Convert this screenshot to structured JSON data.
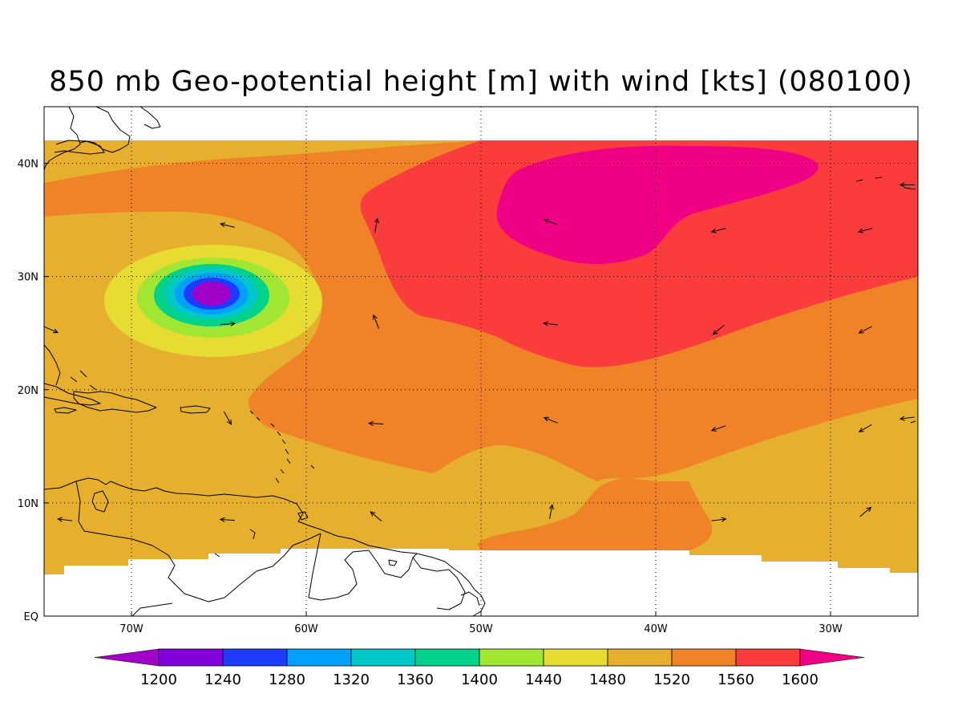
{
  "title": "850 mb Geo-potential height [m] with wind [kts] (080100)",
  "map": {
    "lon_range": [
      -75,
      -25
    ],
    "lat_range": [
      0,
      45
    ],
    "data_lat_range": [
      5,
      42
    ],
    "lon_ticks": [
      {
        "value": -70,
        "label": "70W"
      },
      {
        "value": -60,
        "label": "60W"
      },
      {
        "value": -50,
        "label": "50W"
      },
      {
        "value": -40,
        "label": "40W"
      },
      {
        "value": -30,
        "label": "30W"
      }
    ],
    "lat_ticks": [
      {
        "value": 0,
        "label": "EQ"
      },
      {
        "value": 10,
        "label": "10N"
      },
      {
        "value": 20,
        "label": "20N"
      },
      {
        "value": 30,
        "label": "30N"
      },
      {
        "value": 40,
        "label": "40N"
      }
    ],
    "low_center": {
      "lon": -65.3,
      "lat": 28.5
    },
    "high_center": {
      "lon": -41,
      "lat": 36
    }
  },
  "colorbar": {
    "levels": [
      "1200",
      "1240",
      "1280",
      "1320",
      "1360",
      "1400",
      "1440",
      "1480",
      "1520",
      "1560",
      "1600"
    ],
    "colors": [
      "#a000c8",
      "#8200dc",
      "#1e3cff",
      "#00a0ff",
      "#00c8c8",
      "#00d28c",
      "#a0e632",
      "#e6dc32",
      "#e6af2d",
      "#f08228",
      "#fa3c3c",
      "#f00082"
    ],
    "underflow_color": "#a000c8",
    "overflow_color": "#f00082"
  },
  "wind_vectors": [
    {
      "lon": -64.5,
      "lat": 34.5,
      "u": -0.8,
      "v": 0.2
    },
    {
      "lon": -64.5,
      "lat": 25.8,
      "u": 0.8,
      "v": 0.05
    },
    {
      "lon": -56,
      "lat": 34.5,
      "u": 0.15,
      "v": 0.8
    },
    {
      "lon": -56,
      "lat": 26,
      "u": -0.3,
      "v": 0.75
    },
    {
      "lon": -56,
      "lat": 17,
      "u": -0.8,
      "v": 0.05
    },
    {
      "lon": -56,
      "lat": 8.8,
      "u": -0.6,
      "v": 0.5
    },
    {
      "lon": -46,
      "lat": 34.8,
      "u": -0.75,
      "v": 0.3
    },
    {
      "lon": -46,
      "lat": 25.8,
      "u": -0.8,
      "v": 0.1
    },
    {
      "lon": -46,
      "lat": 17.3,
      "u": -0.75,
      "v": 0.3
    },
    {
      "lon": -46,
      "lat": 9.2,
      "u": 0.15,
      "v": 0.8
    },
    {
      "lon": -36.4,
      "lat": 34.1,
      "u": -0.8,
      "v": -0.2
    },
    {
      "lon": -36.4,
      "lat": 25.3,
      "u": -0.6,
      "v": -0.5
    },
    {
      "lon": -36.4,
      "lat": 16.6,
      "u": -0.75,
      "v": -0.25
    },
    {
      "lon": -36.4,
      "lat": 8.5,
      "u": 0.8,
      "v": 0.1
    },
    {
      "lon": -28,
      "lat": 34.1,
      "u": -0.8,
      "v": -0.2
    },
    {
      "lon": -28,
      "lat": 25.3,
      "u": -0.7,
      "v": -0.35
    },
    {
      "lon": -28,
      "lat": 16.6,
      "u": -0.7,
      "v": -0.4
    },
    {
      "lon": -28,
      "lat": 9.2,
      "u": 0.6,
      "v": 0.5
    },
    {
      "lon": -74.6,
      "lat": 25.3,
      "u": 0.7,
      "v": -0.3
    },
    {
      "lon": -73.8,
      "lat": 8.5,
      "u": -0.8,
      "v": 0.1
    },
    {
      "lon": -64.5,
      "lat": 8.5,
      "u": -0.8,
      "v": 0.05
    },
    {
      "lon": -64.5,
      "lat": 17.5,
      "u": 0.4,
      "v": -0.7
    },
    {
      "lon": -25.6,
      "lat": 17.5,
      "u": -0.8,
      "v": -0.1
    },
    {
      "lon": -25.6,
      "lat": 38.1,
      "u": -0.8,
      "v": 0.0
    }
  ]
}
